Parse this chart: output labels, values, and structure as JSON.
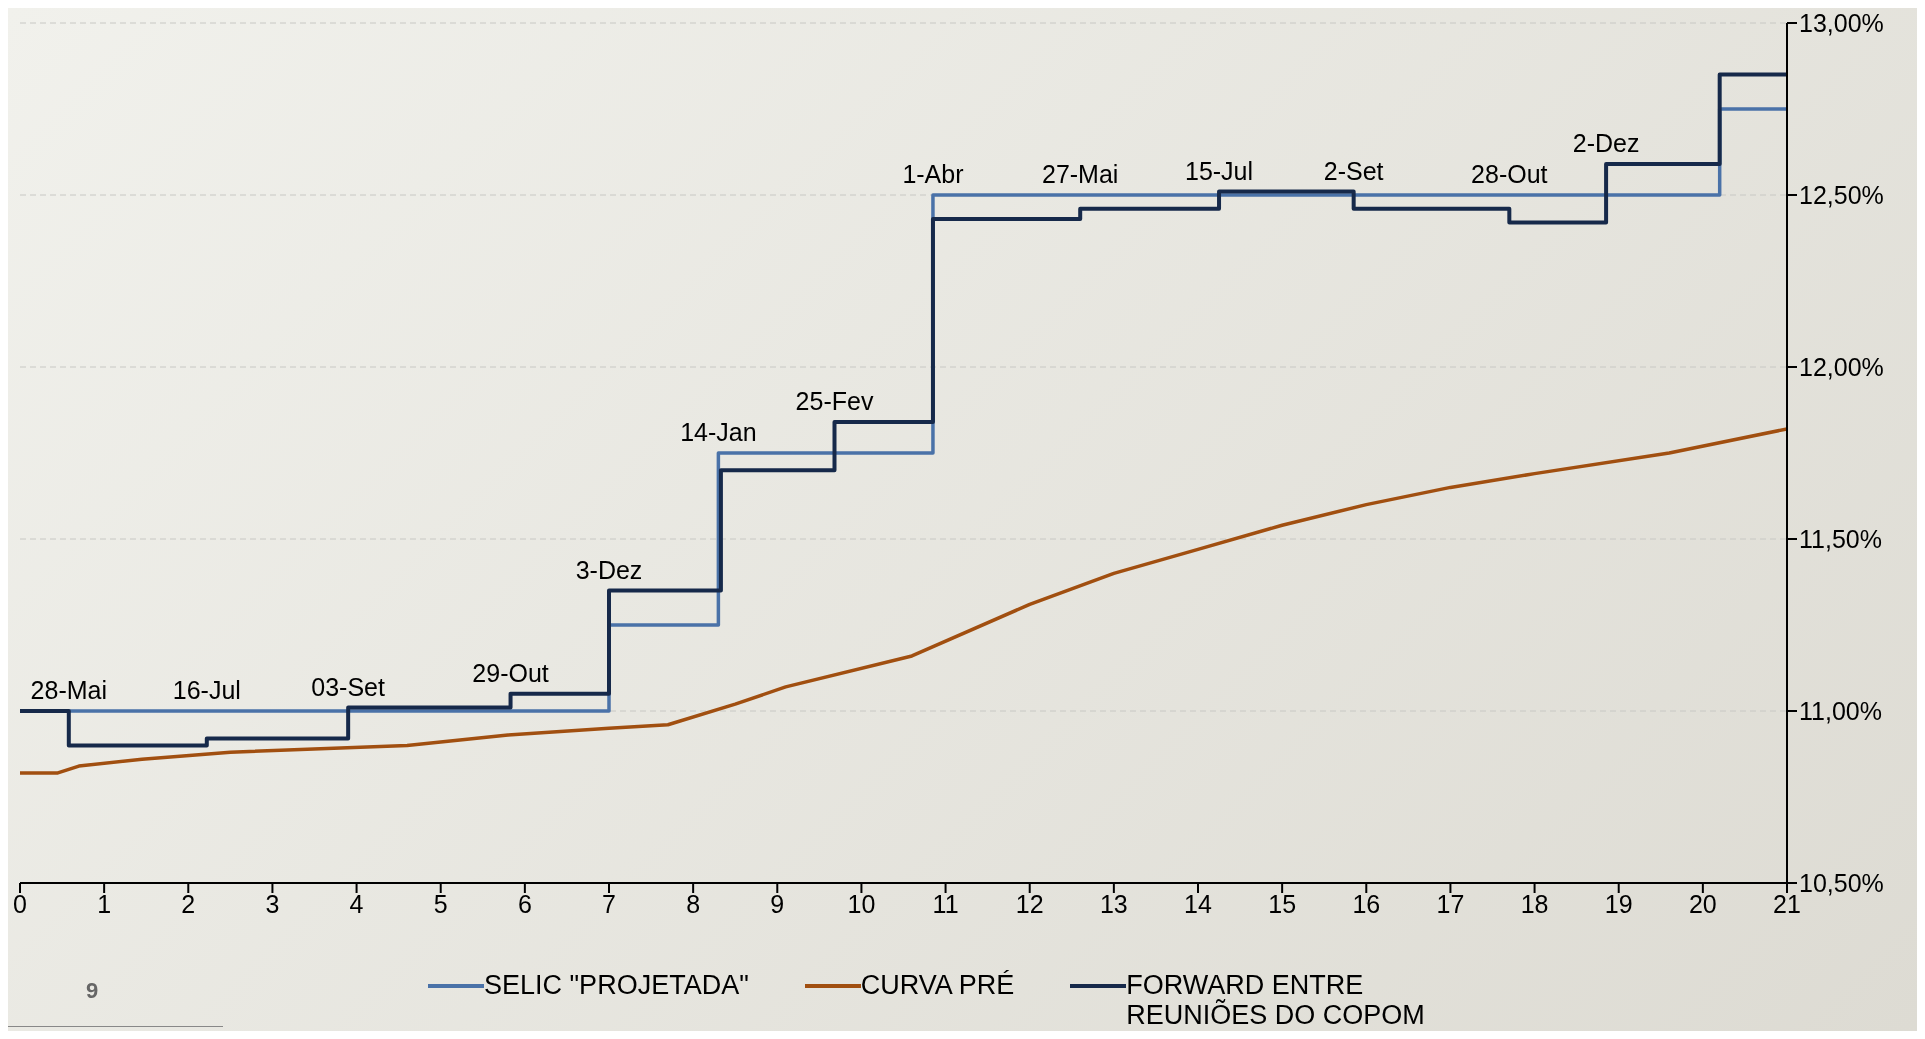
{
  "chart_data": {
    "type": "step",
    "xlim": [
      0,
      21
    ],
    "xticks": [
      0,
      1,
      2,
      3,
      4,
      5,
      6,
      7,
      8,
      9,
      10,
      11,
      12,
      13,
      14,
      15,
      16,
      17,
      18,
      19,
      20,
      21
    ],
    "ylim": [
      10.5,
      13.0
    ],
    "yticks": [
      {
        "value": 10.5,
        "label": "10,50%"
      },
      {
        "value": 11.0,
        "label": "11,00%"
      },
      {
        "value": 11.5,
        "label": "11,50%"
      },
      {
        "value": 12.0,
        "label": "12,00%"
      },
      {
        "value": 12.5,
        "label": "12,50%"
      },
      {
        "value": 13.0,
        "label": "13,00%"
      }
    ],
    "grid": "y",
    "legend": "bottom",
    "marker": "none",
    "line_style": "solid",
    "series": [
      {
        "name": "SELIC \"PROJETADA\"",
        "color": "#4a72a8",
        "type": "step",
        "x": [
          0,
          7.0,
          8.3,
          10.85,
          20.2,
          21
        ],
        "values": [
          11.0,
          11.25,
          11.75,
          12.5,
          12.75,
          12.75
        ]
      },
      {
        "name": "CURVA PRÉ",
        "color": "#a14f10",
        "type": "line",
        "x": [
          0,
          0.45,
          0.7,
          1.45,
          2.5,
          4.6,
          5.8,
          7.0,
          7.7,
          8.5,
          9.1,
          10.6,
          12.0,
          13.0,
          14.0,
          15.0,
          16.0,
          17.0,
          18.0,
          19.6,
          21.0
        ],
        "values": [
          10.82,
          10.82,
          10.84,
          10.86,
          10.88,
          10.9,
          10.93,
          10.95,
          10.96,
          11.02,
          11.07,
          11.16,
          11.31,
          11.4,
          11.47,
          11.54,
          11.6,
          11.65,
          11.69,
          11.75,
          11.82
        ]
      },
      {
        "name": "FORWARD ENTRE REUNIÕES DO COPOM",
        "color": "#16294a",
        "type": "step",
        "x": [
          0,
          0.58,
          2.22,
          3.9,
          5.83,
          7.0,
          8.33,
          9.68,
          10.85,
          12.6,
          14.25,
          15.85,
          17.7,
          18.85,
          20.2,
          21
        ],
        "values": [
          11.0,
          10.9,
          10.92,
          11.01,
          11.05,
          11.35,
          11.7,
          11.84,
          12.43,
          12.46,
          12.51,
          12.46,
          12.42,
          12.59,
          12.85,
          12.85
        ]
      }
    ],
    "annotations": [
      {
        "text": "28-Mai",
        "x": 0.58,
        "y": 11.0
      },
      {
        "text": "16-Jul",
        "x": 2.22,
        "y": 11.0
      },
      {
        "text": "03-Set",
        "x": 3.9,
        "y": 11.01
      },
      {
        "text": "29-Out",
        "x": 5.83,
        "y": 11.05
      },
      {
        "text": "3-Dez",
        "x": 7.0,
        "y": 11.35
      },
      {
        "text": "14-Jan",
        "x": 8.3,
        "y": 11.75
      },
      {
        "text": "25-Fev",
        "x": 9.68,
        "y": 11.84
      },
      {
        "text": "1-Abr",
        "x": 10.85,
        "y": 12.5
      },
      {
        "text": "27-Mai",
        "x": 12.6,
        "y": 12.5
      },
      {
        "text": "15-Jul",
        "x": 14.25,
        "y": 12.51
      },
      {
        "text": "2-Set",
        "x": 15.85,
        "y": 12.51
      },
      {
        "text": "28-Out",
        "x": 17.7,
        "y": 12.5
      },
      {
        "text": "2-Dez",
        "x": 18.85,
        "y": 12.59
      },
      "9"
    ]
  }
}
